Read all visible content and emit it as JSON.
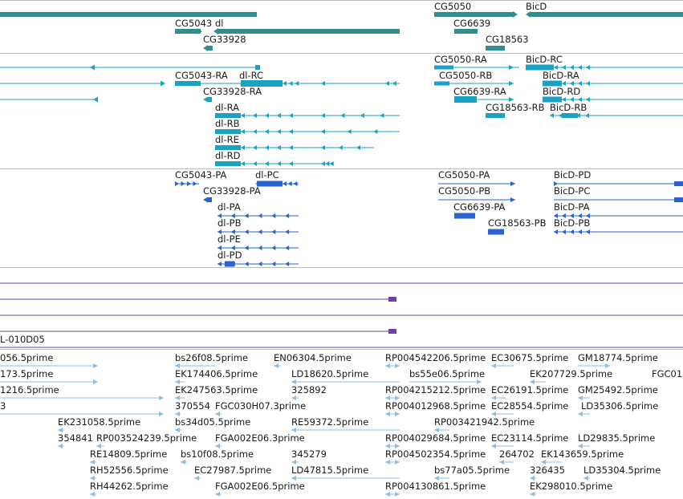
{
  "colors": {
    "gene": "#2f8f8c",
    "transcript": "#1aa2c4",
    "protein": "#2a62d0",
    "contig": "#6a3fa6",
    "est": "#8cbfe0",
    "separator": "#bdbdbd",
    "text": "#1a1a1a"
  },
  "tracks": {
    "genes": {
      "labels": [
        "CG5050",
        "BicD",
        "CG5043",
        "dl",
        "CG6639",
        "CG33928",
        "CG18563"
      ]
    },
    "transcripts": {
      "labels": [
        "CG5050-RA",
        "BicD-RC",
        "CG5043-RA",
        "dl-RC",
        "CG5050-RB",
        "BicD-RA",
        "CG33928-RA",
        "CG6639-RA",
        "BicD-RD",
        "dl-RA",
        "CG18563-RB",
        "BicD-RB",
        "dl-RB",
        "dl-RE",
        "dl-RD"
      ]
    },
    "proteins": {
      "labels": [
        "CG5043-PA",
        "dl-PC",
        "CG5050-PA",
        "BicD-PD",
        "CG33928-PA",
        "CG5050-PB",
        "BicD-PC",
        "dl-PA",
        "CG6639-PA",
        "BicD-PA",
        "dl-PB",
        "CG18563-PB",
        "BicD-PB",
        "dl-PE",
        "dl-PD"
      ]
    },
    "contigs": {
      "labels": [
        "L-010D05"
      ]
    },
    "ests": {
      "labels": [
        "056.5prime",
        "bs26f08.5prime",
        "EN06304.5prime",
        "RP004542206.5prime",
        "EC30675.5prime",
        "GM18774.5prime",
        "173.5prime",
        "EK174406.5prime",
        "LD18620.5prime",
        "bs55e06.5prime",
        "EK207729.5prime",
        "FGC01",
        "1216.5prime",
        "EK247563.5prime",
        "325892",
        "RP004215212.5prime",
        "EC26191.5prime",
        "GM25492.5prime",
        "3",
        "370554",
        "FGC030H07.3prime",
        "RP004012968.5prime",
        "EC28554.5prime",
        "LD35306.5prime",
        "EK231058.5prime",
        "bs34d05.5prime",
        "RE59372.5prime",
        "RP003421942.5prime",
        "354841",
        "RP003524239.5prime",
        "FGA002E06.3prime",
        "RP004029684.5prime",
        "EC23114.5prime",
        "LD29835.5prime",
        "RE14809.5prime",
        "bs10f08.5prime",
        "345279",
        "RP004502354.5prime",
        "264702",
        "EK143659.5prime",
        "RH52556.5prime",
        "EC27987.5prime",
        "LD47815.5prime",
        "bs77a05.5prime",
        "326435",
        "LD35304.5prime",
        "RH44262.5prime",
        "FGA002E06.5prime",
        "RP004130861.5prime",
        "EK298010.5prime"
      ]
    }
  }
}
